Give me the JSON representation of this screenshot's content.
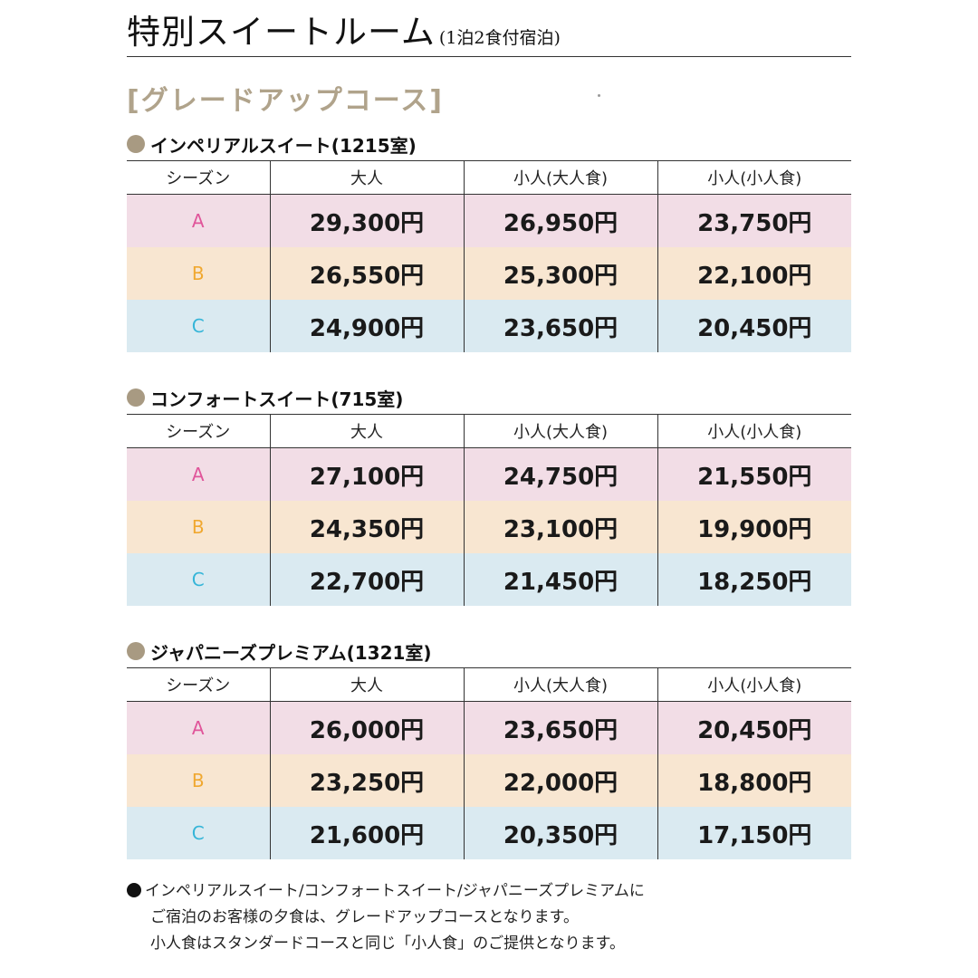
{
  "header": {
    "title": "特別スイートルーム",
    "subtitle": "(1泊2食付宿泊)"
  },
  "course_heading": "[グレードアップコース]",
  "table_headers": [
    "シーズン",
    "大人",
    "小人(大人食)",
    "小人(小人食)"
  ],
  "suites": [
    {
      "name": "インペリアルスイート(1215室)",
      "rows": [
        {
          "season": "A",
          "adult": "29,300円",
          "child_adult_meal": "26,950円",
          "child_child_meal": "23,750円"
        },
        {
          "season": "B",
          "adult": "26,550円",
          "child_adult_meal": "25,300円",
          "child_child_meal": "22,100円"
        },
        {
          "season": "C",
          "adult": "24,900円",
          "child_adult_meal": "23,650円",
          "child_child_meal": "20,450円"
        }
      ]
    },
    {
      "name": "コンフォートスイート(715室)",
      "rows": [
        {
          "season": "A",
          "adult": "27,100円",
          "child_adult_meal": "24,750円",
          "child_child_meal": "21,550円"
        },
        {
          "season": "B",
          "adult": "24,350円",
          "child_adult_meal": "23,100円",
          "child_child_meal": "19,900円"
        },
        {
          "season": "C",
          "adult": "22,700円",
          "child_adult_meal": "21,450円",
          "child_child_meal": "18,250円"
        }
      ]
    },
    {
      "name": "ジャパニーズプレミアム(1321室)",
      "rows": [
        {
          "season": "A",
          "adult": "26,000円",
          "child_adult_meal": "23,650円",
          "child_child_meal": "20,450円"
        },
        {
          "season": "B",
          "adult": "23,250円",
          "child_adult_meal": "22,000円",
          "child_child_meal": "18,800円"
        },
        {
          "season": "C",
          "adult": "21,600円",
          "child_adult_meal": "20,350円",
          "child_child_meal": "17,150円"
        }
      ]
    }
  ],
  "notes": [
    "インペリアルスイート/コンフォートスイート/ジャパニーズプレミアムに",
    "ご宿泊のお客様の夕食は、グレードアップコースとなります。",
    "小人食はスタンダードコースと同じ「小人食」のご提供となります。"
  ],
  "colors": {
    "season_A": "#e0559a",
    "season_B": "#f0a830",
    "season_C": "#35b5d8",
    "row_A_bg": "#f2dde6",
    "row_B_bg": "#f8e6d1",
    "row_C_bg": "#daeaf1",
    "accent_beige": "#b0a38b"
  }
}
